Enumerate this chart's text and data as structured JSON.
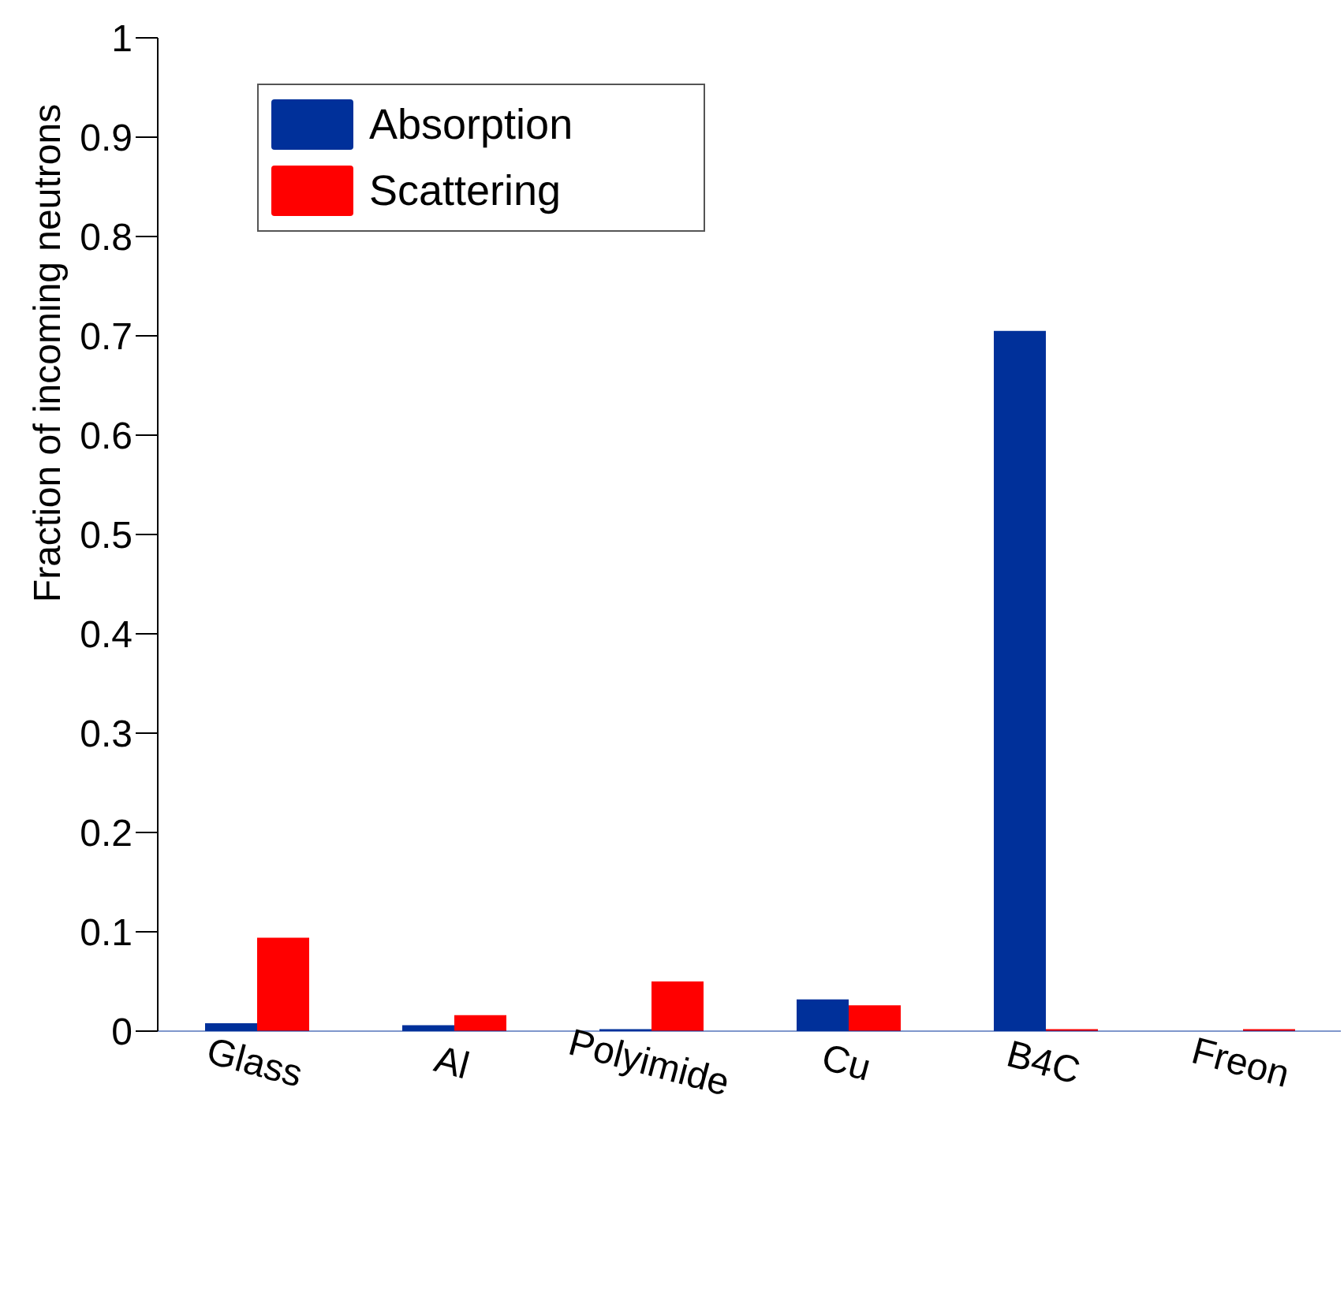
{
  "chart_data": {
    "type": "bar",
    "ylabel": "Fraction of incoming neutrons",
    "categories": [
      "Glass",
      "Al",
      "Polyimide",
      "Cu",
      "B4C",
      "Freon"
    ],
    "series": [
      {
        "name": "Absorption",
        "color": "#00309a",
        "values": [
          0.008,
          0.006,
          0.002,
          0.032,
          0.705,
          0
        ]
      },
      {
        "name": "Scattering",
        "color": "#ff0000",
        "values": [
          0.094,
          0.016,
          0.05,
          0.026,
          0.002,
          0.002
        ]
      }
    ],
    "ylim": [
      0,
      1
    ],
    "yticks": [
      0,
      0.1,
      0.2,
      0.3,
      0.4,
      0.5,
      0.6,
      0.7,
      0.8,
      0.9,
      1
    ],
    "grid": false,
    "legend": "top left"
  }
}
